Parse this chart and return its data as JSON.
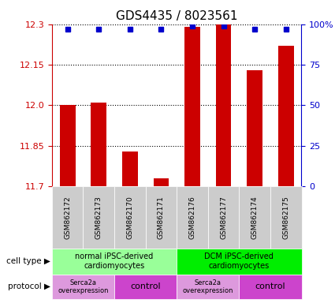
{
  "title": "GDS4435 / 8023561",
  "samples": [
    "GSM862172",
    "GSM862173",
    "GSM862170",
    "GSM862171",
    "GSM862176",
    "GSM862177",
    "GSM862174",
    "GSM862175"
  ],
  "bar_values": [
    12.0,
    12.01,
    11.83,
    11.73,
    12.29,
    12.3,
    12.13,
    12.22
  ],
  "percentile_values": [
    97,
    97,
    97,
    97,
    99,
    99,
    97,
    97
  ],
  "ylim_left": [
    11.7,
    12.3
  ],
  "ylim_right": [
    0,
    100
  ],
  "yticks_left": [
    11.7,
    11.85,
    12.0,
    12.15,
    12.3
  ],
  "yticks_right": [
    0,
    25,
    50,
    75,
    100
  ],
  "bar_color": "#cc0000",
  "percentile_color": "#0000cc",
  "cell_type_groups": [
    {
      "label": "normal iPSC-derived\ncardiomyocytes",
      "start": 0,
      "end": 4,
      "color": "#99ff99"
    },
    {
      "label": "DCM iPSC-derived\ncardiomyocytes",
      "start": 4,
      "end": 8,
      "color": "#00ee00"
    }
  ],
  "protocol_groups": [
    {
      "label": "Serca2a\noverexpression",
      "start": 0,
      "end": 2,
      "color": "#ee99ee",
      "fontsize": 6
    },
    {
      "label": "control",
      "start": 2,
      "end": 4,
      "color": "#dd44dd",
      "fontsize": 8
    },
    {
      "label": "Serca2a\noverexpression",
      "start": 4,
      "end": 6,
      "color": "#ee99ee",
      "fontsize": 6
    },
    {
      "label": "control",
      "start": 6,
      "end": 8,
      "color": "#dd44dd",
      "fontsize": 8
    }
  ],
  "left_axis_color": "#cc0000",
  "right_axis_color": "#0000cc",
  "bar_width": 0.5,
  "tick_label_fontsize": 8,
  "title_fontsize": 11,
  "cell_type_label_fontsize": 7,
  "protocol_label_fontsize": 8
}
